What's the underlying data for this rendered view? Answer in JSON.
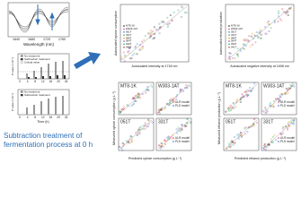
{
  "spectrum": {
    "x_label": "Wavelength (nm)",
    "x_ticks": [
      "1640",
      "1680",
      "1720",
      "1760"
    ]
  },
  "pvalue_charts": [
    {
      "legend": [
        "No treatment",
        "Subtraction treatment",
        "Critical value"
      ],
      "y_label": "P value (×10⁻³)",
      "x_ticks": [
        "0",
        "4",
        "8",
        "12",
        "16",
        "20",
        "24"
      ]
    },
    {
      "legend": [
        "No treatment",
        "Subtraction treatment"
      ],
      "y_label": "P value (×10⁻³)",
      "x_ticks": [
        "0",
        "4",
        "8",
        "12",
        "16",
        "20",
        "24"
      ],
      "x_label": "Time (h)"
    }
  ],
  "caption": "Subtraction treatment of fermentation process at 0 h",
  "correlation_plots": [
    {
      "y_label": "Autoscaled xylose consumption",
      "x_label": "Autoscaled intensity at 1718 nm",
      "legend": [
        "MT8-1K",
        "W303-1AT",
        "051T",
        "331T",
        "088T",
        "064T",
        "030T",
        "041T"
      ]
    },
    {
      "y_label": "Autoscaled ethanol production",
      "x_label": "Autoscaled negative intensity at 1698 nm",
      "legend": [
        "MT8-1K",
        "W303-1AT",
        "051T",
        "331T",
        "088T",
        "064T",
        "030T",
        "041T"
      ]
    }
  ],
  "prediction_plots": [
    {
      "y_label": "Measured xylose consumption (g L⁻¹)",
      "x_label": "Predicted xylose consumption (g L⁻¹)",
      "panels": [
        "MT8-1K",
        "W303-1AT",
        "051T",
        "331T"
      ],
      "legend": [
        "ULR model",
        "PLS model"
      ]
    },
    {
      "y_label": "Measured ethanol production (g L⁻¹)",
      "x_label": "Predicted ethanol production (g L⁻¹)",
      "panels": [
        "MT8-1K",
        "W303-1AT",
        "051T",
        "331T"
      ],
      "legend": [
        "ULR model",
        "PLS model"
      ]
    }
  ]
}
